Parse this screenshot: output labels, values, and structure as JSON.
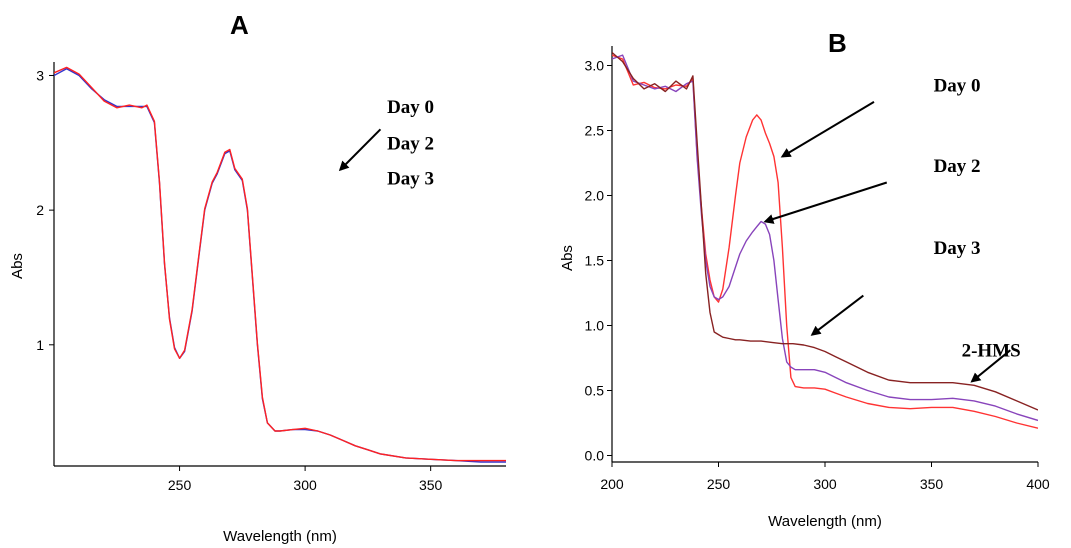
{
  "chart_data": [
    {
      "type": "line",
      "panel_label": "A",
      "xlabel": "Wavelength (nm)",
      "ylabel": "Abs",
      "xlim": [
        200,
        380
      ],
      "ylim": [
        0.1,
        3.1
      ],
      "xticks": [
        250,
        300,
        350
      ],
      "yticks": [
        1,
        2,
        3
      ],
      "grid": false,
      "annotations": [
        {
          "text": "Day 0",
          "x": 342,
          "y": 2.72
        },
        {
          "text": "Day 2",
          "x": 342,
          "y": 2.45
        },
        {
          "text": "Day 3",
          "x": 342,
          "y": 2.19
        }
      ],
      "arrows": [
        {
          "from": [
            330,
            2.6
          ],
          "to": [
            314,
            2.3
          ]
        }
      ],
      "series": [
        {
          "color": "#3333cc",
          "x": [
            200,
            205,
            210,
            215,
            220,
            225,
            230,
            235,
            237,
            240,
            242,
            244,
            246,
            248,
            250,
            252,
            255,
            258,
            260,
            263,
            265,
            268,
            270,
            272,
            275,
            277,
            279,
            281,
            283,
            285,
            288,
            290,
            295,
            300,
            305,
            310,
            315,
            320,
            325,
            330,
            340,
            350,
            360,
            370,
            380
          ],
          "y": [
            3.0,
            3.05,
            3.0,
            2.9,
            2.82,
            2.77,
            2.77,
            2.77,
            2.77,
            2.65,
            2.2,
            1.6,
            1.2,
            0.98,
            0.9,
            0.95,
            1.25,
            1.7,
            2.0,
            2.2,
            2.27,
            2.42,
            2.44,
            2.3,
            2.22,
            2.0,
            1.5,
            1.0,
            0.6,
            0.42,
            0.36,
            0.36,
            0.37,
            0.37,
            0.36,
            0.33,
            0.29,
            0.25,
            0.22,
            0.19,
            0.16,
            0.15,
            0.14,
            0.13,
            0.13
          ]
        },
        {
          "color": "#ff2222",
          "x": [
            200,
            205,
            210,
            215,
            220,
            225,
            230,
            235,
            237,
            240,
            242,
            244,
            246,
            248,
            250,
            252,
            255,
            258,
            260,
            263,
            265,
            268,
            270,
            272,
            275,
            277,
            279,
            281,
            283,
            285,
            288,
            290,
            295,
            300,
            305,
            310,
            315,
            320,
            325,
            330,
            340,
            350,
            360,
            370,
            380
          ],
          "y": [
            3.02,
            3.06,
            3.01,
            2.91,
            2.81,
            2.76,
            2.78,
            2.76,
            2.78,
            2.66,
            2.21,
            1.61,
            1.19,
            0.97,
            0.9,
            0.96,
            1.26,
            1.71,
            2.01,
            2.21,
            2.28,
            2.43,
            2.45,
            2.31,
            2.23,
            2.01,
            1.51,
            1.01,
            0.61,
            0.42,
            0.36,
            0.36,
            0.37,
            0.38,
            0.36,
            0.33,
            0.29,
            0.25,
            0.22,
            0.19,
            0.16,
            0.15,
            0.14,
            0.14,
            0.14
          ]
        }
      ]
    },
    {
      "type": "line",
      "panel_label": "B",
      "xlabel": "Wavelength (nm)",
      "ylabel": "Abs",
      "xlim": [
        200,
        400
      ],
      "ylim": [
        -0.05,
        3.15
      ],
      "xticks": [
        200,
        250,
        300,
        350,
        400
      ],
      "yticks": [
        0.0,
        0.5,
        1.0,
        1.5,
        2.0,
        2.5,
        3.0
      ],
      "ytick_labels": [
        "0.0",
        "0.5",
        "1.0",
        "1.5",
        "2.0",
        "2.5",
        "3.0"
      ],
      "grid": false,
      "annotations": [
        {
          "text": "Day 0",
          "x": 362,
          "y": 2.8
        },
        {
          "text": "Day 2",
          "x": 362,
          "y": 2.18
        },
        {
          "text": "Day 3",
          "x": 362,
          "y": 1.55
        },
        {
          "text": "2-HMS",
          "x": 378,
          "y": 0.76
        }
      ],
      "arrows": [
        {
          "from": [
            323,
            2.72
          ],
          "to": [
            280,
            2.3
          ]
        },
        {
          "from": [
            329,
            2.1
          ],
          "to": [
            272,
            1.8
          ]
        },
        {
          "from": [
            318,
            1.23
          ],
          "to": [
            294,
            0.93
          ]
        },
        {
          "from": [
            387,
            0.81
          ],
          "to": [
            369,
            0.57
          ]
        }
      ],
      "series": [
        {
          "color": "#ff3333",
          "x": [
            200,
            205,
            210,
            215,
            220,
            225,
            230,
            235,
            238,
            240,
            242,
            244,
            246,
            248,
            250,
            252,
            255,
            258,
            260,
            263,
            266,
            268,
            270,
            272,
            274,
            276,
            278,
            280,
            282,
            284,
            286,
            290,
            295,
            300,
            305,
            310,
            320,
            330,
            340,
            350,
            360,
            370,
            380,
            390,
            400
          ],
          "y": [
            3.08,
            3.05,
            2.85,
            2.87,
            2.83,
            2.82,
            2.85,
            2.84,
            2.9,
            2.3,
            1.9,
            1.55,
            1.35,
            1.22,
            1.18,
            1.28,
            1.6,
            2.0,
            2.25,
            2.45,
            2.58,
            2.62,
            2.58,
            2.48,
            2.4,
            2.3,
            2.1,
            1.6,
            1.0,
            0.6,
            0.53,
            0.52,
            0.52,
            0.51,
            0.48,
            0.45,
            0.4,
            0.37,
            0.36,
            0.37,
            0.37,
            0.34,
            0.3,
            0.25,
            0.21
          ]
        },
        {
          "color": "#8844bb",
          "x": [
            200,
            205,
            210,
            215,
            220,
            225,
            230,
            235,
            238,
            240,
            242,
            244,
            246,
            248,
            250,
            252,
            255,
            258,
            260,
            263,
            266,
            268,
            270,
            272,
            274,
            276,
            278,
            280,
            282,
            284,
            286,
            290,
            295,
            300,
            305,
            310,
            320,
            330,
            340,
            350,
            360,
            370,
            380,
            390,
            400
          ],
          "y": [
            3.05,
            3.08,
            2.88,
            2.85,
            2.82,
            2.84,
            2.8,
            2.86,
            2.88,
            2.28,
            1.85,
            1.5,
            1.3,
            1.22,
            1.2,
            1.22,
            1.3,
            1.45,
            1.55,
            1.65,
            1.72,
            1.76,
            1.8,
            1.78,
            1.7,
            1.5,
            1.2,
            0.9,
            0.72,
            0.68,
            0.66,
            0.66,
            0.66,
            0.64,
            0.6,
            0.56,
            0.5,
            0.45,
            0.43,
            0.43,
            0.44,
            0.42,
            0.38,
            0.32,
            0.27
          ]
        },
        {
          "color": "#882222",
          "x": [
            200,
            205,
            210,
            215,
            220,
            225,
            230,
            235,
            238,
            240,
            242,
            244,
            246,
            248,
            250,
            252,
            255,
            258,
            260,
            265,
            270,
            275,
            280,
            285,
            290,
            295,
            300,
            305,
            310,
            320,
            330,
            340,
            350,
            360,
            370,
            380,
            390,
            400
          ],
          "y": [
            3.1,
            3.03,
            2.9,
            2.82,
            2.86,
            2.8,
            2.88,
            2.82,
            2.92,
            2.4,
            1.9,
            1.4,
            1.1,
            0.95,
            0.93,
            0.91,
            0.9,
            0.89,
            0.89,
            0.88,
            0.88,
            0.87,
            0.86,
            0.86,
            0.85,
            0.83,
            0.8,
            0.76,
            0.72,
            0.64,
            0.58,
            0.56,
            0.56,
            0.56,
            0.54,
            0.49,
            0.42,
            0.35
          ]
        }
      ]
    }
  ]
}
